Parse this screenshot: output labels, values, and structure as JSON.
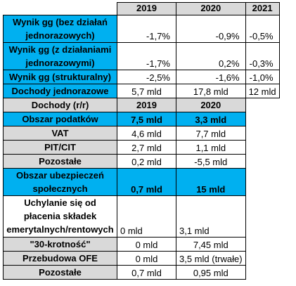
{
  "header": {
    "years": [
      "2019",
      "2020",
      "2021"
    ]
  },
  "rows_top": [
    {
      "label": "Wynik gg (bez działań jednorazowych)",
      "v": [
        "-1,7%",
        "-0,9%",
        "-0,5%"
      ]
    },
    {
      "label": "Wynik gg (z działaniami jednorazowymi)",
      "v": [
        "-1,7%",
        "0,2%",
        "-0,3%"
      ]
    },
    {
      "label": "Wynik gg (strukturalny)",
      "v": [
        "-2,5%",
        "-1,6%",
        "-1,0%"
      ]
    },
    {
      "label": "Dochody jednorazowe",
      "v": [
        "5,7 mld",
        "17,8 mld",
        "12 mld"
      ]
    }
  ],
  "sub_header": {
    "label": "Dochody (r/r)",
    "years": [
      "2019",
      "2020"
    ]
  },
  "rows_bottom": [
    {
      "label": "Obszar podatków",
      "v": [
        "7,5 mld",
        "3,3 mld"
      ]
    },
    {
      "label": "VAT",
      "v": [
        "4,6 mld",
        "7,7 mld"
      ]
    },
    {
      "label": "PIT/CIT",
      "v": [
        "2,7 mld",
        "1,1 mld"
      ]
    },
    {
      "label": "Pozostałe",
      "v": [
        "0,2 mld",
        "-5,5 mld"
      ]
    },
    {
      "label": "Obszar ubezpieczeń społecznych",
      "v": [
        "0,7 mld",
        "15 mld"
      ]
    },
    {
      "label": "Uchylanie się od płacenia składek emerytalnych/rentowych",
      "v": [
        "0 mld",
        "3,1 mld"
      ]
    },
    {
      "label": "\"30-krotność\"",
      "v": [
        "0 mld",
        "7,45 mld"
      ]
    },
    {
      "label": "Przebudowa OFE",
      "v": [
        "0 mld",
        "3,5 mld (trwałe)"
      ]
    },
    {
      "label": "Pozostałe",
      "v": [
        "0,7 mld",
        "0,95 mld"
      ]
    }
  ],
  "colors": {
    "blue": "#00b0f0",
    "grey": "#d9d9d9"
  }
}
